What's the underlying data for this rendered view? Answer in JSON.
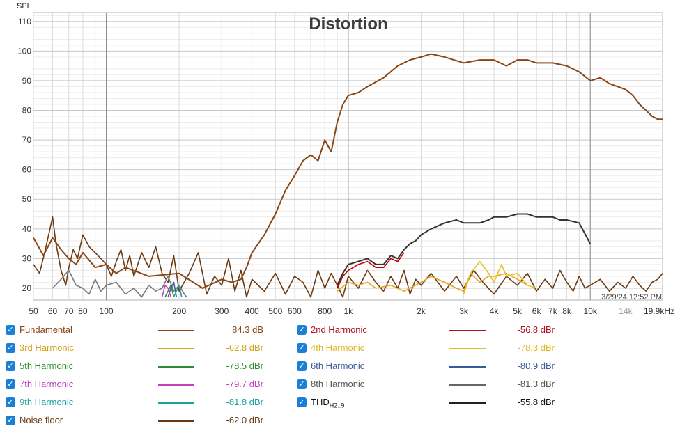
{
  "chart_data": {
    "type": "line",
    "title": "Distortion",
    "ylabel": "SPL",
    "xlabel": "",
    "x_scale": "log",
    "xlim": [
      50,
      19900
    ],
    "ylim": [
      16,
      113
    ],
    "grid": true,
    "y_ticks": [
      "20",
      "30",
      "40",
      "50",
      "60",
      "70",
      "80",
      "90",
      "100",
      "110"
    ],
    "x_ticks": [
      {
        "v": 50,
        "label": "50"
      },
      {
        "v": 60,
        "label": "60"
      },
      {
        "v": 70,
        "label": "70"
      },
      {
        "v": 80,
        "label": "80"
      },
      {
        "v": 100,
        "label": "100"
      },
      {
        "v": 200,
        "label": "200"
      },
      {
        "v": 300,
        "label": "300"
      },
      {
        "v": 400,
        "label": "400"
      },
      {
        "v": 500,
        "label": "500"
      },
      {
        "v": 600,
        "label": "600"
      },
      {
        "v": 800,
        "label": "800"
      },
      {
        "v": 1000,
        "label": "1k"
      },
      {
        "v": 2000,
        "label": "2k"
      },
      {
        "v": 3000,
        "label": "3k"
      },
      {
        "v": 4000,
        "label": "4k"
      },
      {
        "v": 5000,
        "label": "5k"
      },
      {
        "v": 6000,
        "label": "6k"
      },
      {
        "v": 7000,
        "label": "7k"
      },
      {
        "v": 8000,
        "label": "8k"
      },
      {
        "v": 10000,
        "label": "10k"
      },
      {
        "v": 14000,
        "label": "14k",
        "muted": true
      },
      {
        "v": 19900,
        "label": "19.9kHz"
      }
    ],
    "timestamp": "3/29/24 12:52 PM",
    "series": [
      {
        "name": "Fundamental",
        "color": "#8B4513",
        "x": [
          50,
          55,
          60,
          65,
          70,
          75,
          80,
          90,
          100,
          110,
          120,
          150,
          200,
          250,
          300,
          330,
          360,
          380,
          400,
          450,
          500,
          550,
          600,
          650,
          700,
          750,
          800,
          850,
          900,
          950,
          1000,
          1100,
          1200,
          1400,
          1600,
          1800,
          2000,
          2200,
          2500,
          3000,
          3500,
          4000,
          4500,
          5000,
          5500,
          6000,
          7000,
          8000,
          9000,
          10000,
          11000,
          12000,
          13000,
          14000,
          15000,
          16000,
          17000,
          18000,
          19000,
          19900
        ],
        "y": [
          37,
          31,
          37,
          33,
          30,
          28,
          32,
          27,
          28,
          25,
          27,
          24,
          25,
          20,
          23,
          22,
          23,
          27,
          32,
          38,
          45,
          53,
          58,
          63,
          65,
          63,
          70,
          66,
          76,
          82,
          85,
          86,
          88,
          91,
          95,
          97,
          98,
          99,
          98,
          96,
          97,
          97,
          95,
          97,
          97,
          96,
          96,
          95,
          93,
          90,
          91,
          89,
          88,
          87,
          85,
          82,
          80,
          78,
          77,
          77
        ]
      },
      {
        "name": "2nd Harmonic",
        "color": "#c00000",
        "x": [
          900,
          950,
          1000,
          1100,
          1200,
          1300,
          1400,
          1500,
          1600,
          1700
        ],
        "y": [
          20,
          24,
          26,
          28,
          29,
          27,
          27,
          30,
          29,
          32
        ]
      },
      {
        "name": "3rd Harmonic",
        "color": "#e6a020",
        "x": [
          900,
          1000,
          1100,
          1200,
          1300,
          1500,
          1700,
          2000,
          2200,
          2500,
          2800,
          3000,
          3200,
          3500,
          3800,
          4000,
          4500,
          5000,
          5500
        ],
        "y": [
          19,
          22,
          21,
          22,
          20,
          21,
          19,
          22,
          24,
          22,
          20,
          19,
          25,
          22,
          24,
          24,
          25,
          23,
          21
        ]
      },
      {
        "name": "4th Harmonic",
        "color": "#e8c020",
        "x": [
          3000,
          3200,
          3500,
          3800,
          4000,
          4300,
          4500,
          5000,
          5500,
          6000
        ],
        "y": [
          18,
          25,
          29,
          25,
          22,
          28,
          24,
          25,
          21,
          20
        ]
      },
      {
        "name": "5th Harmonic",
        "color": "#2a8c2a",
        "x": [
          175,
          180,
          185,
          190
        ],
        "y": [
          17,
          19,
          21,
          17
        ]
      },
      {
        "name": "6th Harmonic",
        "color": "#3a5a9a",
        "x": [
          180,
          185,
          190,
          195
        ],
        "y": [
          17,
          20,
          22,
          17
        ]
      },
      {
        "name": "7th Harmonic",
        "color": "#c040c0",
        "x": [
          170,
          175,
          180,
          185
        ],
        "y": [
          17,
          21,
          20,
          17
        ]
      },
      {
        "name": "8th Harmonic",
        "color": "#777777",
        "x": [
          60,
          65,
          70,
          75,
          80,
          85,
          90,
          95,
          100,
          110,
          120,
          130,
          140,
          150,
          160,
          170,
          180,
          190,
          200,
          210,
          215
        ],
        "y": [
          20,
          23,
          26,
          21,
          20,
          18,
          23,
          19,
          21,
          22,
          18,
          20,
          17,
          21,
          19,
          20,
          24,
          19,
          21,
          18,
          17
        ]
      },
      {
        "name": "9th Harmonic",
        "color": "#1aa0a0",
        "x": [
          190,
          195,
          200,
          205
        ],
        "y": [
          17,
          19,
          21,
          17
        ]
      },
      {
        "name": "THD",
        "color": "#3a3030",
        "x": [
          900,
          950,
          1000,
          1100,
          1200,
          1300,
          1400,
          1500,
          1600,
          1700,
          1800,
          1900,
          2000,
          2200,
          2500,
          2800,
          3000,
          3200,
          3500,
          3800,
          4000,
          4500,
          5000,
          5500,
          6000,
          6500,
          7000,
          7500,
          8000,
          9000,
          10000
        ],
        "y": [
          21,
          25,
          28,
          29,
          30,
          28,
          28,
          31,
          30,
          33,
          35,
          36,
          38,
          40,
          42,
          43,
          42,
          42,
          42,
          43,
          44,
          44,
          45,
          45,
          44,
          44,
          44,
          43,
          43,
          42,
          35
        ]
      },
      {
        "name": "Noise floor",
        "color": "#6b3a10",
        "x": [
          50,
          53,
          56,
          60,
          62,
          65,
          68,
          70,
          73,
          76,
          80,
          85,
          90,
          95,
          100,
          105,
          110,
          115,
          120,
          125,
          130,
          140,
          150,
          160,
          170,
          180,
          190,
          200,
          220,
          240,
          260,
          280,
          300,
          320,
          340,
          360,
          380,
          400,
          450,
          500,
          550,
          600,
          650,
          700,
          750,
          800,
          850,
          900,
          950,
          1000,
          1100,
          1200,
          1300,
          1400,
          1500,
          1600,
          1700,
          1800,
          1900,
          2000,
          2200,
          2500,
          2800,
          3000,
          3300,
          3600,
          4000,
          4500,
          5000,
          5500,
          6000,
          6500,
          7000,
          7500,
          8000,
          8500,
          9000,
          9500,
          10000,
          11000,
          12000,
          13000,
          14000,
          15000,
          16000,
          17000,
          18000,
          19000,
          19900
        ],
        "y": [
          28,
          25,
          33,
          44,
          35,
          26,
          21,
          27,
          33,
          30,
          38,
          34,
          32,
          30,
          28,
          24,
          29,
          33,
          26,
          31,
          24,
          32,
          27,
          34,
          25,
          22,
          31,
          19,
          25,
          32,
          18,
          24,
          21,
          30,
          19,
          26,
          17,
          23,
          19,
          25,
          18,
          24,
          22,
          17,
          26,
          20,
          25,
          21,
          17,
          24,
          20,
          26,
          22,
          19,
          24,
          20,
          26,
          18,
          23,
          21,
          25,
          19,
          24,
          20,
          26,
          22,
          18,
          24,
          21,
          25,
          19,
          23,
          20,
          26,
          22,
          19,
          24,
          20,
          21,
          23,
          19,
          22,
          20,
          24,
          21,
          19,
          22,
          23,
          25
        ]
      }
    ]
  },
  "legend": {
    "fundamental": {
      "name": "Fundamental",
      "value": "84.3 dB",
      "color": "#8B4513",
      "text_color": "#8B4513"
    },
    "h2": {
      "name": "2nd Harmonic",
      "value": "-56.8 dBr",
      "color": "#b01020",
      "text_color": "#b01020"
    },
    "h3": {
      "name": "3rd Harmonic",
      "value": "-62.8 dBr",
      "color": "#d4a017",
      "text_color": "#d4a017"
    },
    "h4": {
      "name": "4th Harmonic",
      "value": "-78.3 dBr",
      "color": "#e0c020",
      "text_color": "#e0b820"
    },
    "h5": {
      "name": "5th Harmonic",
      "value": "-78.5 dBr",
      "color": "#2a8c2a",
      "text_color": "#2a8c2a"
    },
    "h6": {
      "name": "6th Harmonic",
      "value": "-80.9 dBr",
      "color": "#3a5a9a",
      "text_color": "#3a5a9a"
    },
    "h7": {
      "name": "7th Harmonic",
      "value": "-79.7 dBr",
      "color": "#c040c0",
      "text_color": "#c040c0"
    },
    "h8": {
      "name": "8th Harmonic",
      "value": "-81.3 dBr",
      "color": "#666666",
      "text_color": "#555555"
    },
    "h9": {
      "name": "9th Harmonic",
      "value": "-81.8 dBr",
      "color": "#1aa0a0",
      "text_color": "#1aa0a0"
    },
    "thd": {
      "name": "THD",
      "sub": "H2..9",
      "value": "-55.8 dBr",
      "color": "#222222",
      "text_color": "#111111"
    },
    "noise": {
      "name": "Noise floor",
      "value": "-62.0 dBr",
      "color": "#6b3a10",
      "text_color": "#6b3a10"
    },
    "check_glyph": "✓"
  }
}
